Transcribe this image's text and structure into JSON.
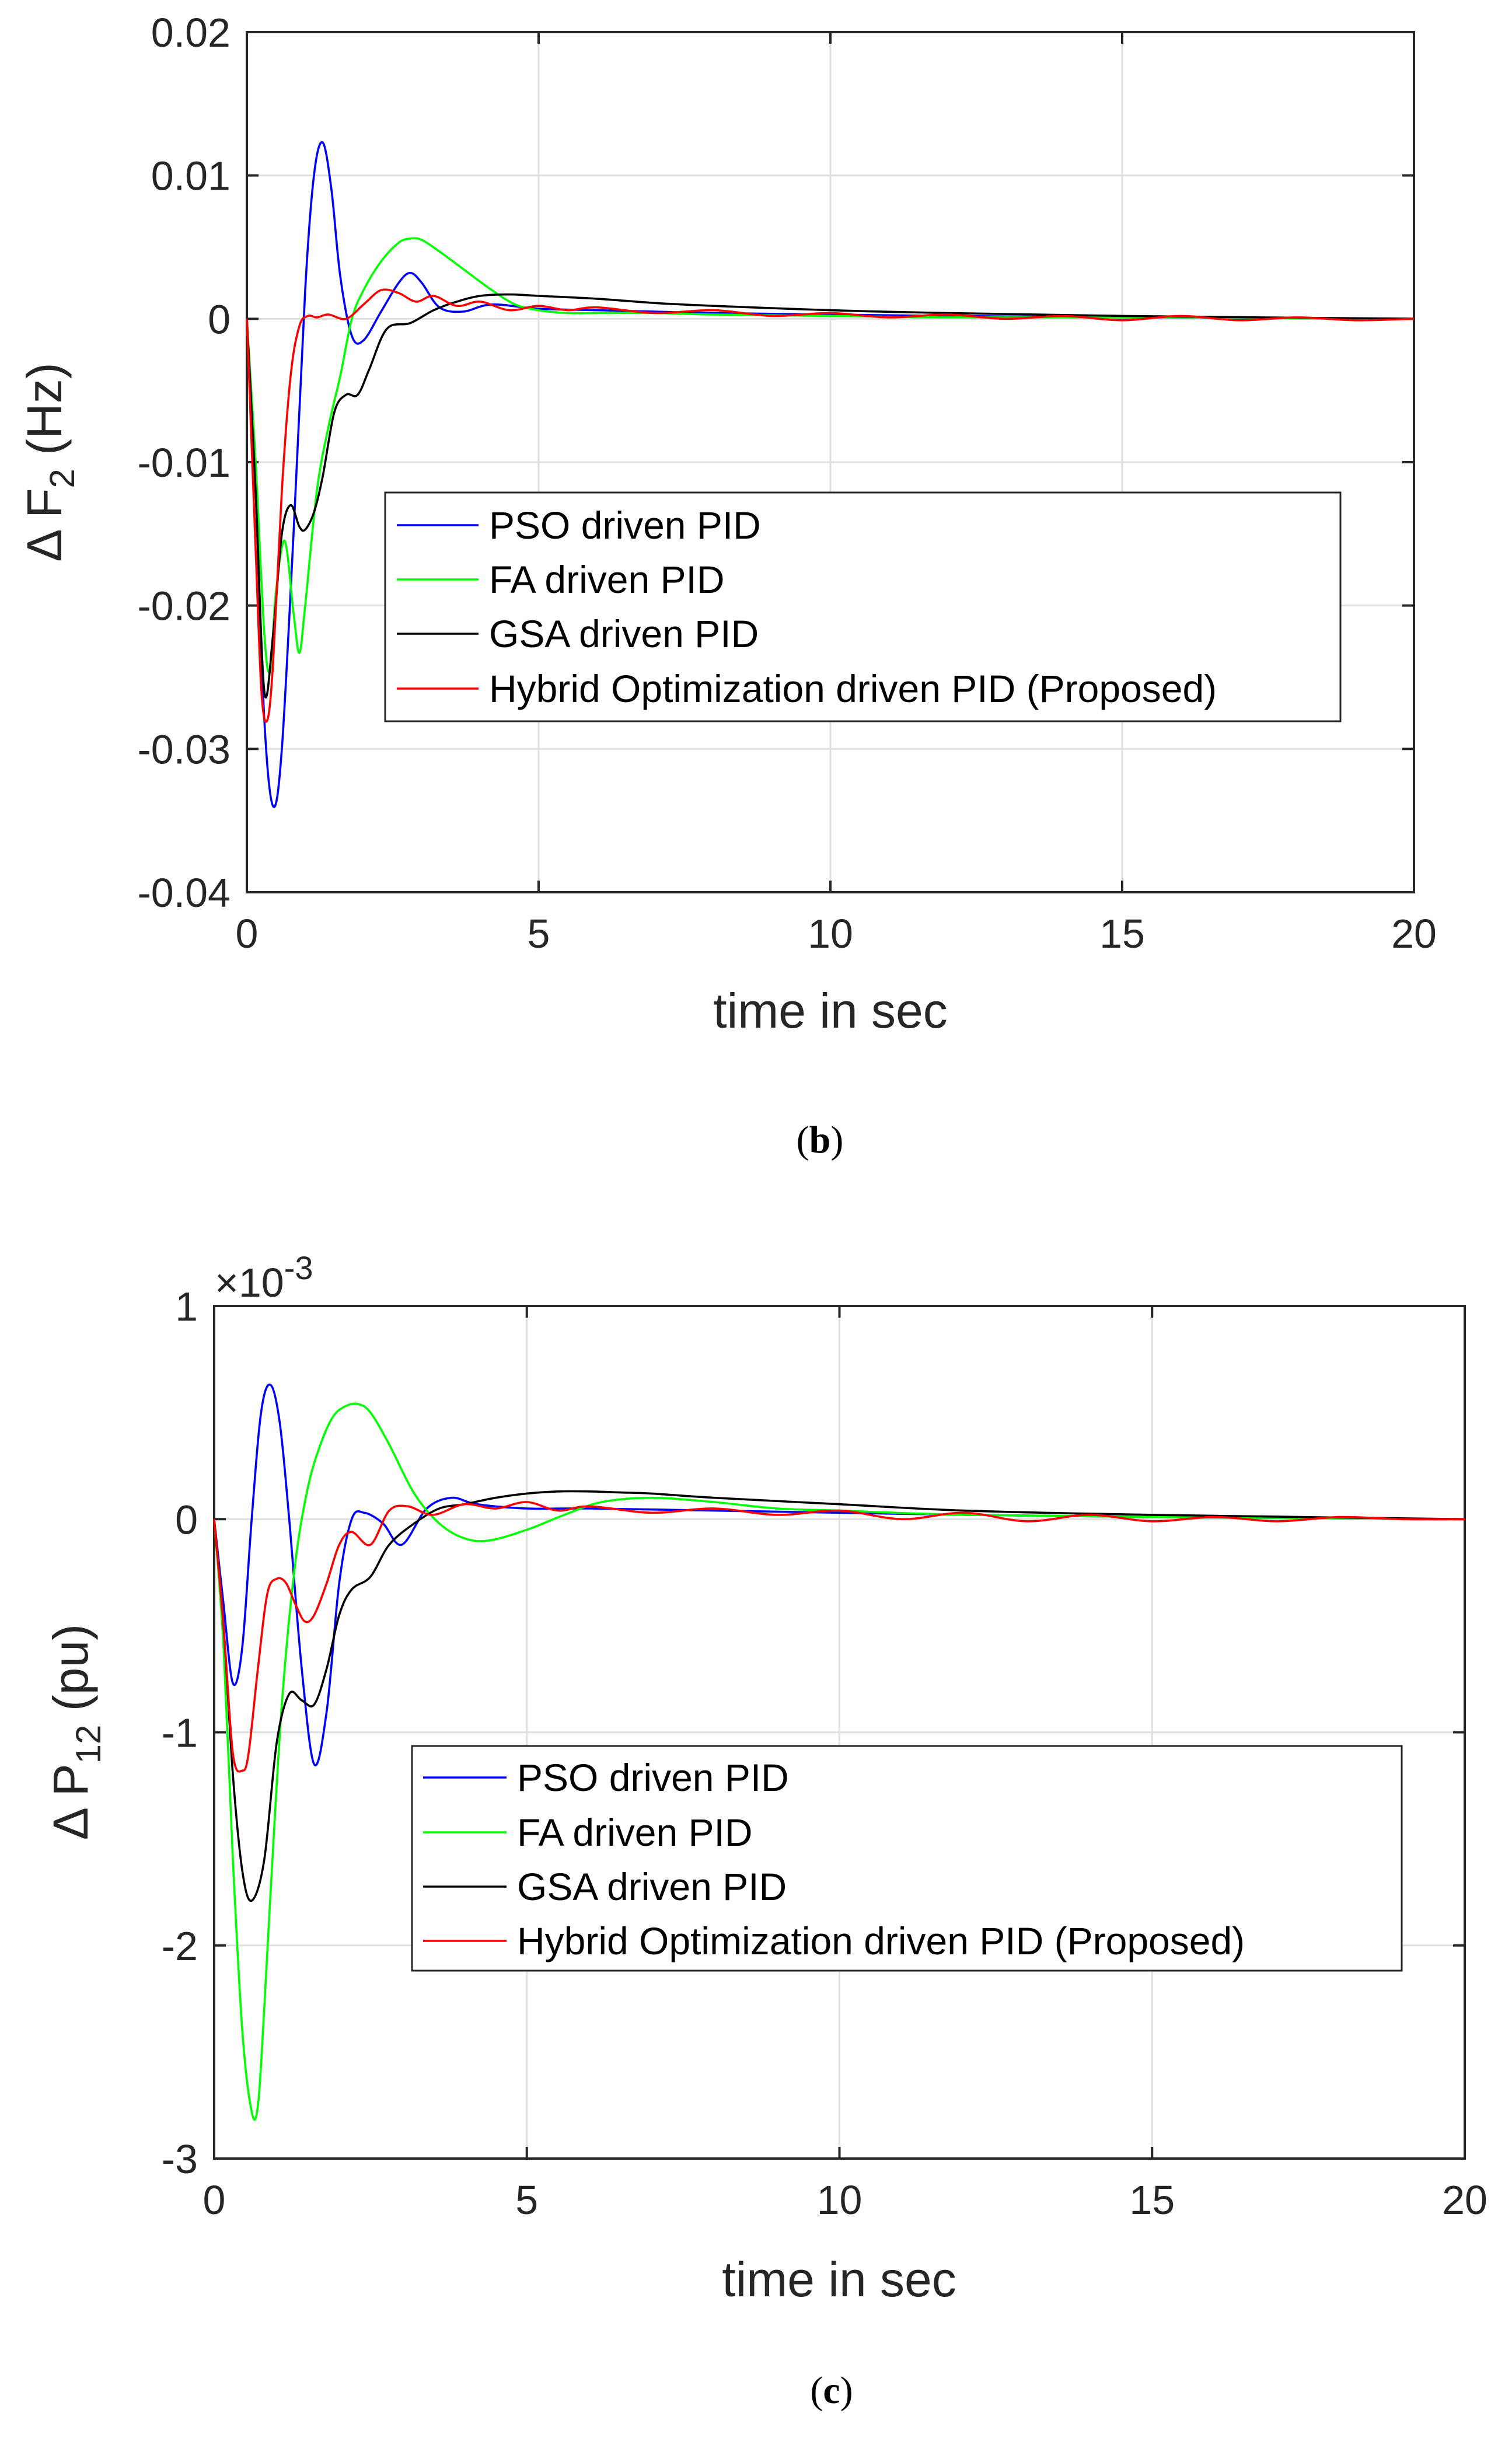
{
  "colors": {
    "pso": "#0000ff",
    "fa": "#00ff00",
    "gsa": "#000000",
    "hybrid": "#ff0000"
  },
  "chart_data": [
    {
      "type": "line",
      "caption_letter": "b",
      "xlabel": "time in sec",
      "ylabel_main": "Δ F",
      "ylabel_sub": "2",
      "ylabel_unit": " (Hz)",
      "xlim": [
        0,
        20
      ],
      "ylim": [
        -0.04,
        0.02
      ],
      "xticks": [
        0,
        5,
        10,
        15,
        20
      ],
      "xtick_labels": [
        "0",
        "5",
        "10",
        "15",
        "20"
      ],
      "yticks": [
        0.02,
        0.01,
        0,
        -0.01,
        -0.02,
        -0.03,
        -0.04
      ],
      "ytick_labels": [
        "0.02",
        "0.01",
        "0",
        "-0.01",
        "-0.02",
        "-0.03",
        "-0.04"
      ],
      "grid": true,
      "legend_position": "center-right",
      "series": [
        {
          "name": "PSO driven PID",
          "color_key": "pso",
          "x": [
            0,
            0.15,
            0.3,
            0.45,
            0.6,
            0.8,
            1.0,
            1.15,
            1.3,
            1.45,
            1.6,
            1.8,
            2.0,
            2.3,
            2.6,
            2.8,
            3.0,
            3.3,
            3.7,
            4.2,
            5,
            6,
            7,
            8,
            10,
            12,
            15,
            20
          ],
          "y": [
            0,
            -0.012,
            -0.028,
            -0.034,
            -0.03,
            -0.015,
            0.002,
            0.01,
            0.0123,
            0.009,
            0.003,
            -0.0012,
            -0.0015,
            0.0005,
            0.0025,
            0.0032,
            0.0025,
            0.0008,
            0.0005,
            0.001,
            0.0007,
            0.0006,
            0.0005,
            0.0004,
            0.0003,
            0.0002,
            0.0001,
            0
          ]
        },
        {
          "name": "FA driven PID",
          "color_key": "fa",
          "x": [
            0,
            0.15,
            0.3,
            0.4,
            0.5,
            0.65,
            0.8,
            0.9,
            1.0,
            1.2,
            1.4,
            1.6,
            1.8,
            2.0,
            2.3,
            2.6,
            2.8,
            3.0,
            3.3,
            3.7,
            4.2,
            4.6,
            5,
            5.5,
            6,
            7,
            8,
            10,
            12,
            15,
            20
          ],
          "y": [
            0,
            -0.01,
            -0.022,
            -0.0245,
            -0.019,
            -0.0155,
            -0.0205,
            -0.0233,
            -0.02,
            -0.012,
            -0.0075,
            -0.004,
            0,
            0.002,
            0.004,
            0.0053,
            0.0056,
            0.0055,
            0.0047,
            0.0035,
            0.002,
            0.001,
            0.0006,
            0.0004,
            0.0004,
            0.0004,
            0.0003,
            0.0002,
            0.0001,
            0.0001,
            0
          ]
        },
        {
          "name": "GSA driven PID",
          "color_key": "gsa",
          "x": [
            0,
            0.15,
            0.3,
            0.45,
            0.6,
            0.75,
            0.9,
            1.0,
            1.15,
            1.3,
            1.5,
            1.7,
            1.9,
            2.1,
            2.4,
            2.8,
            3.2,
            3.6,
            4.0,
            4.5,
            5,
            6,
            7,
            8,
            10,
            12,
            15,
            20
          ],
          "y": [
            0,
            -0.012,
            -0.026,
            -0.022,
            -0.015,
            -0.013,
            -0.0145,
            -0.0147,
            -0.0135,
            -0.011,
            -0.0065,
            -0.0053,
            -0.0053,
            -0.0035,
            -0.0007,
            -0.0003,
            0.0006,
            0.0012,
            0.0016,
            0.0017,
            0.0016,
            0.0014,
            0.0011,
            0.0009,
            0.0006,
            0.0004,
            0.0002,
            0
          ]
        },
        {
          "name": "Hybrid Optimization driven PID (Proposed)",
          "color_key": "hybrid",
          "x": [
            0,
            0.15,
            0.25,
            0.35,
            0.45,
            0.6,
            0.75,
            0.9,
            1.05,
            1.2,
            1.4,
            1.7,
            2.0,
            2.3,
            2.6,
            2.9,
            3.2,
            3.6,
            4.0,
            4.5,
            5.0,
            5.5,
            6.0,
            7,
            8,
            9,
            10,
            11,
            12,
            13,
            14,
            15,
            16,
            17,
            18,
            19,
            20
          ],
          "y": [
            0,
            -0.016,
            -0.026,
            -0.028,
            -0.024,
            -0.012,
            -0.004,
            -0.0005,
            0.0002,
            0.0001,
            0.0003,
            0.0,
            0.001,
            0.002,
            0.0018,
            0.0012,
            0.0016,
            0.0009,
            0.0012,
            0.0006,
            0.0009,
            0.0006,
            0.0008,
            0.0004,
            0.0006,
            0.0002,
            0.0004,
            0.0001,
            0.0003,
            0.0,
            0.0002,
            -0.0001,
            0.0002,
            -0.0001,
            0.0001,
            -0.0001,
            0
          ]
        }
      ]
    },
    {
      "type": "line",
      "caption_letter": "c",
      "multiplier_label": "×10",
      "multiplier_exp": "-3",
      "xlabel": "time in sec",
      "ylabel_main": "Δ P",
      "ylabel_sub": "12",
      "ylabel_unit": " (pu)",
      "xlim": [
        0,
        20
      ],
      "ylim": [
        -3,
        1
      ],
      "xticks": [
        0,
        5,
        10,
        15,
        20
      ],
      "xtick_labels": [
        "0",
        "5",
        "10",
        "15",
        "20"
      ],
      "yticks": [
        1,
        0,
        -1,
        -2,
        -3
      ],
      "ytick_labels": [
        "1",
        "0",
        "-1",
        "-2",
        "-3"
      ],
      "grid": true,
      "legend_position": "center-right",
      "series": [
        {
          "name": "PSO driven PID",
          "color_key": "pso",
          "x": [
            0,
            0.15,
            0.3,
            0.45,
            0.6,
            0.75,
            0.9,
            1.05,
            1.2,
            1.4,
            1.6,
            1.8,
            2.0,
            2.2,
            2.4,
            2.7,
            3.0,
            3.4,
            3.8,
            4.2,
            5,
            6,
            8,
            10,
            12,
            15,
            20
          ],
          "y": [
            0,
            -0.4,
            -0.77,
            -0.6,
            0.0,
            0.5,
            0.63,
            0.45,
            0.0,
            -0.7,
            -1.15,
            -0.9,
            -0.3,
            0.0,
            0.03,
            -0.02,
            -0.12,
            0.05,
            0.1,
            0.07,
            0.05,
            0.05,
            0.04,
            0.03,
            0.02,
            0.01,
            0
          ]
        },
        {
          "name": "FA driven PID",
          "color_key": "fa",
          "x": [
            0,
            0.15,
            0.3,
            0.45,
            0.6,
            0.7,
            0.8,
            0.95,
            1.1,
            1.3,
            1.5,
            1.7,
            1.9,
            2.1,
            2.3,
            2.5,
            2.8,
            3.2,
            3.6,
            4.0,
            4.4,
            5.0,
            5.6,
            6.2,
            7.0,
            8.0,
            9.0,
            10,
            12,
            15,
            20
          ],
          "y": [
            0,
            -0.6,
            -1.6,
            -2.4,
            -2.78,
            -2.75,
            -2.3,
            -1.5,
            -0.8,
            -0.2,
            0.15,
            0.35,
            0.48,
            0.53,
            0.54,
            0.5,
            0.35,
            0.12,
            -0.02,
            -0.09,
            -0.1,
            -0.05,
            0.02,
            0.08,
            0.1,
            0.08,
            0.05,
            0.04,
            0.02,
            0.01,
            0
          ]
        },
        {
          "name": "GSA driven PID",
          "color_key": "gsa",
          "x": [
            0,
            0.15,
            0.3,
            0.45,
            0.6,
            0.8,
            1.0,
            1.2,
            1.4,
            1.6,
            1.8,
            2.0,
            2.2,
            2.5,
            2.8,
            3.2,
            3.6,
            4.0,
            4.5,
            5,
            5.5,
            6,
            6.5,
            7,
            8,
            10,
            12,
            15,
            20
          ],
          "y": [
            0,
            -0.5,
            -1.2,
            -1.65,
            -1.79,
            -1.6,
            -1.05,
            -0.82,
            -0.85,
            -0.87,
            -0.7,
            -0.45,
            -0.33,
            -0.27,
            -0.12,
            -0.02,
            0.05,
            0.07,
            0.1,
            0.12,
            0.13,
            0.13,
            0.125,
            0.12,
            0.1,
            0.07,
            0.04,
            0.02,
            0
          ]
        },
        {
          "name": "Hybrid Optimization driven PID (Proposed)",
          "color_key": "hybrid",
          "x": [
            0,
            0.15,
            0.3,
            0.45,
            0.55,
            0.7,
            0.85,
            1.0,
            1.15,
            1.3,
            1.45,
            1.6,
            1.8,
            2.0,
            2.2,
            2.5,
            2.8,
            3.1,
            3.5,
            4.0,
            4.5,
            5.0,
            5.5,
            6,
            7,
            8,
            9,
            10,
            11,
            12,
            13,
            14,
            15,
            16,
            17,
            18,
            19,
            20
          ],
          "y": [
            0,
            -0.5,
            -1.1,
            -1.18,
            -1.1,
            -0.7,
            -0.35,
            -0.28,
            -0.3,
            -0.4,
            -0.48,
            -0.45,
            -0.3,
            -0.12,
            -0.06,
            -0.12,
            0.04,
            0.06,
            0.02,
            0.07,
            0.05,
            0.08,
            0.04,
            0.06,
            0.03,
            0.05,
            0.02,
            0.04,
            0.0,
            0.03,
            -0.01,
            0.02,
            -0.01,
            0.01,
            -0.01,
            0.01,
            0.0,
            0
          ]
        }
      ]
    }
  ]
}
